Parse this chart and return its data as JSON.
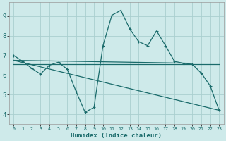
{
  "title": "",
  "xlabel": "Humidex (Indice chaleur)",
  "ylabel": "",
  "background_color": "#ceeaea",
  "grid_color": "#aacfcf",
  "line_color": "#1a6b6b",
  "xlim": [
    -0.5,
    23.5
  ],
  "ylim": [
    3.5,
    9.7
  ],
  "xticks": [
    0,
    1,
    2,
    3,
    4,
    5,
    6,
    7,
    8,
    9,
    10,
    11,
    12,
    13,
    14,
    15,
    16,
    17,
    18,
    19,
    20,
    21,
    22,
    23
  ],
  "yticks": [
    4,
    5,
    6,
    7,
    8,
    9
  ],
  "series1_x": [
    0,
    1,
    2,
    3,
    4,
    5,
    6,
    7,
    8,
    9,
    10,
    11,
    12,
    13,
    14,
    15,
    16,
    17,
    18,
    19,
    20,
    21,
    22,
    23
  ],
  "series1_y": [
    7.0,
    6.7,
    6.35,
    6.05,
    6.5,
    6.65,
    6.3,
    5.15,
    4.1,
    4.35,
    7.5,
    9.05,
    9.3,
    8.35,
    7.7,
    7.5,
    8.25,
    7.5,
    6.7,
    6.6,
    6.55,
    6.1,
    5.45,
    4.2
  ],
  "line1_x": [
    0,
    20
  ],
  "line1_y": [
    6.75,
    6.6
  ],
  "line2_x": [
    0,
    23
  ],
  "line2_y": [
    6.55,
    6.55
  ],
  "line3_x": [
    0,
    23
  ],
  "line3_y": [
    6.75,
    4.2
  ]
}
